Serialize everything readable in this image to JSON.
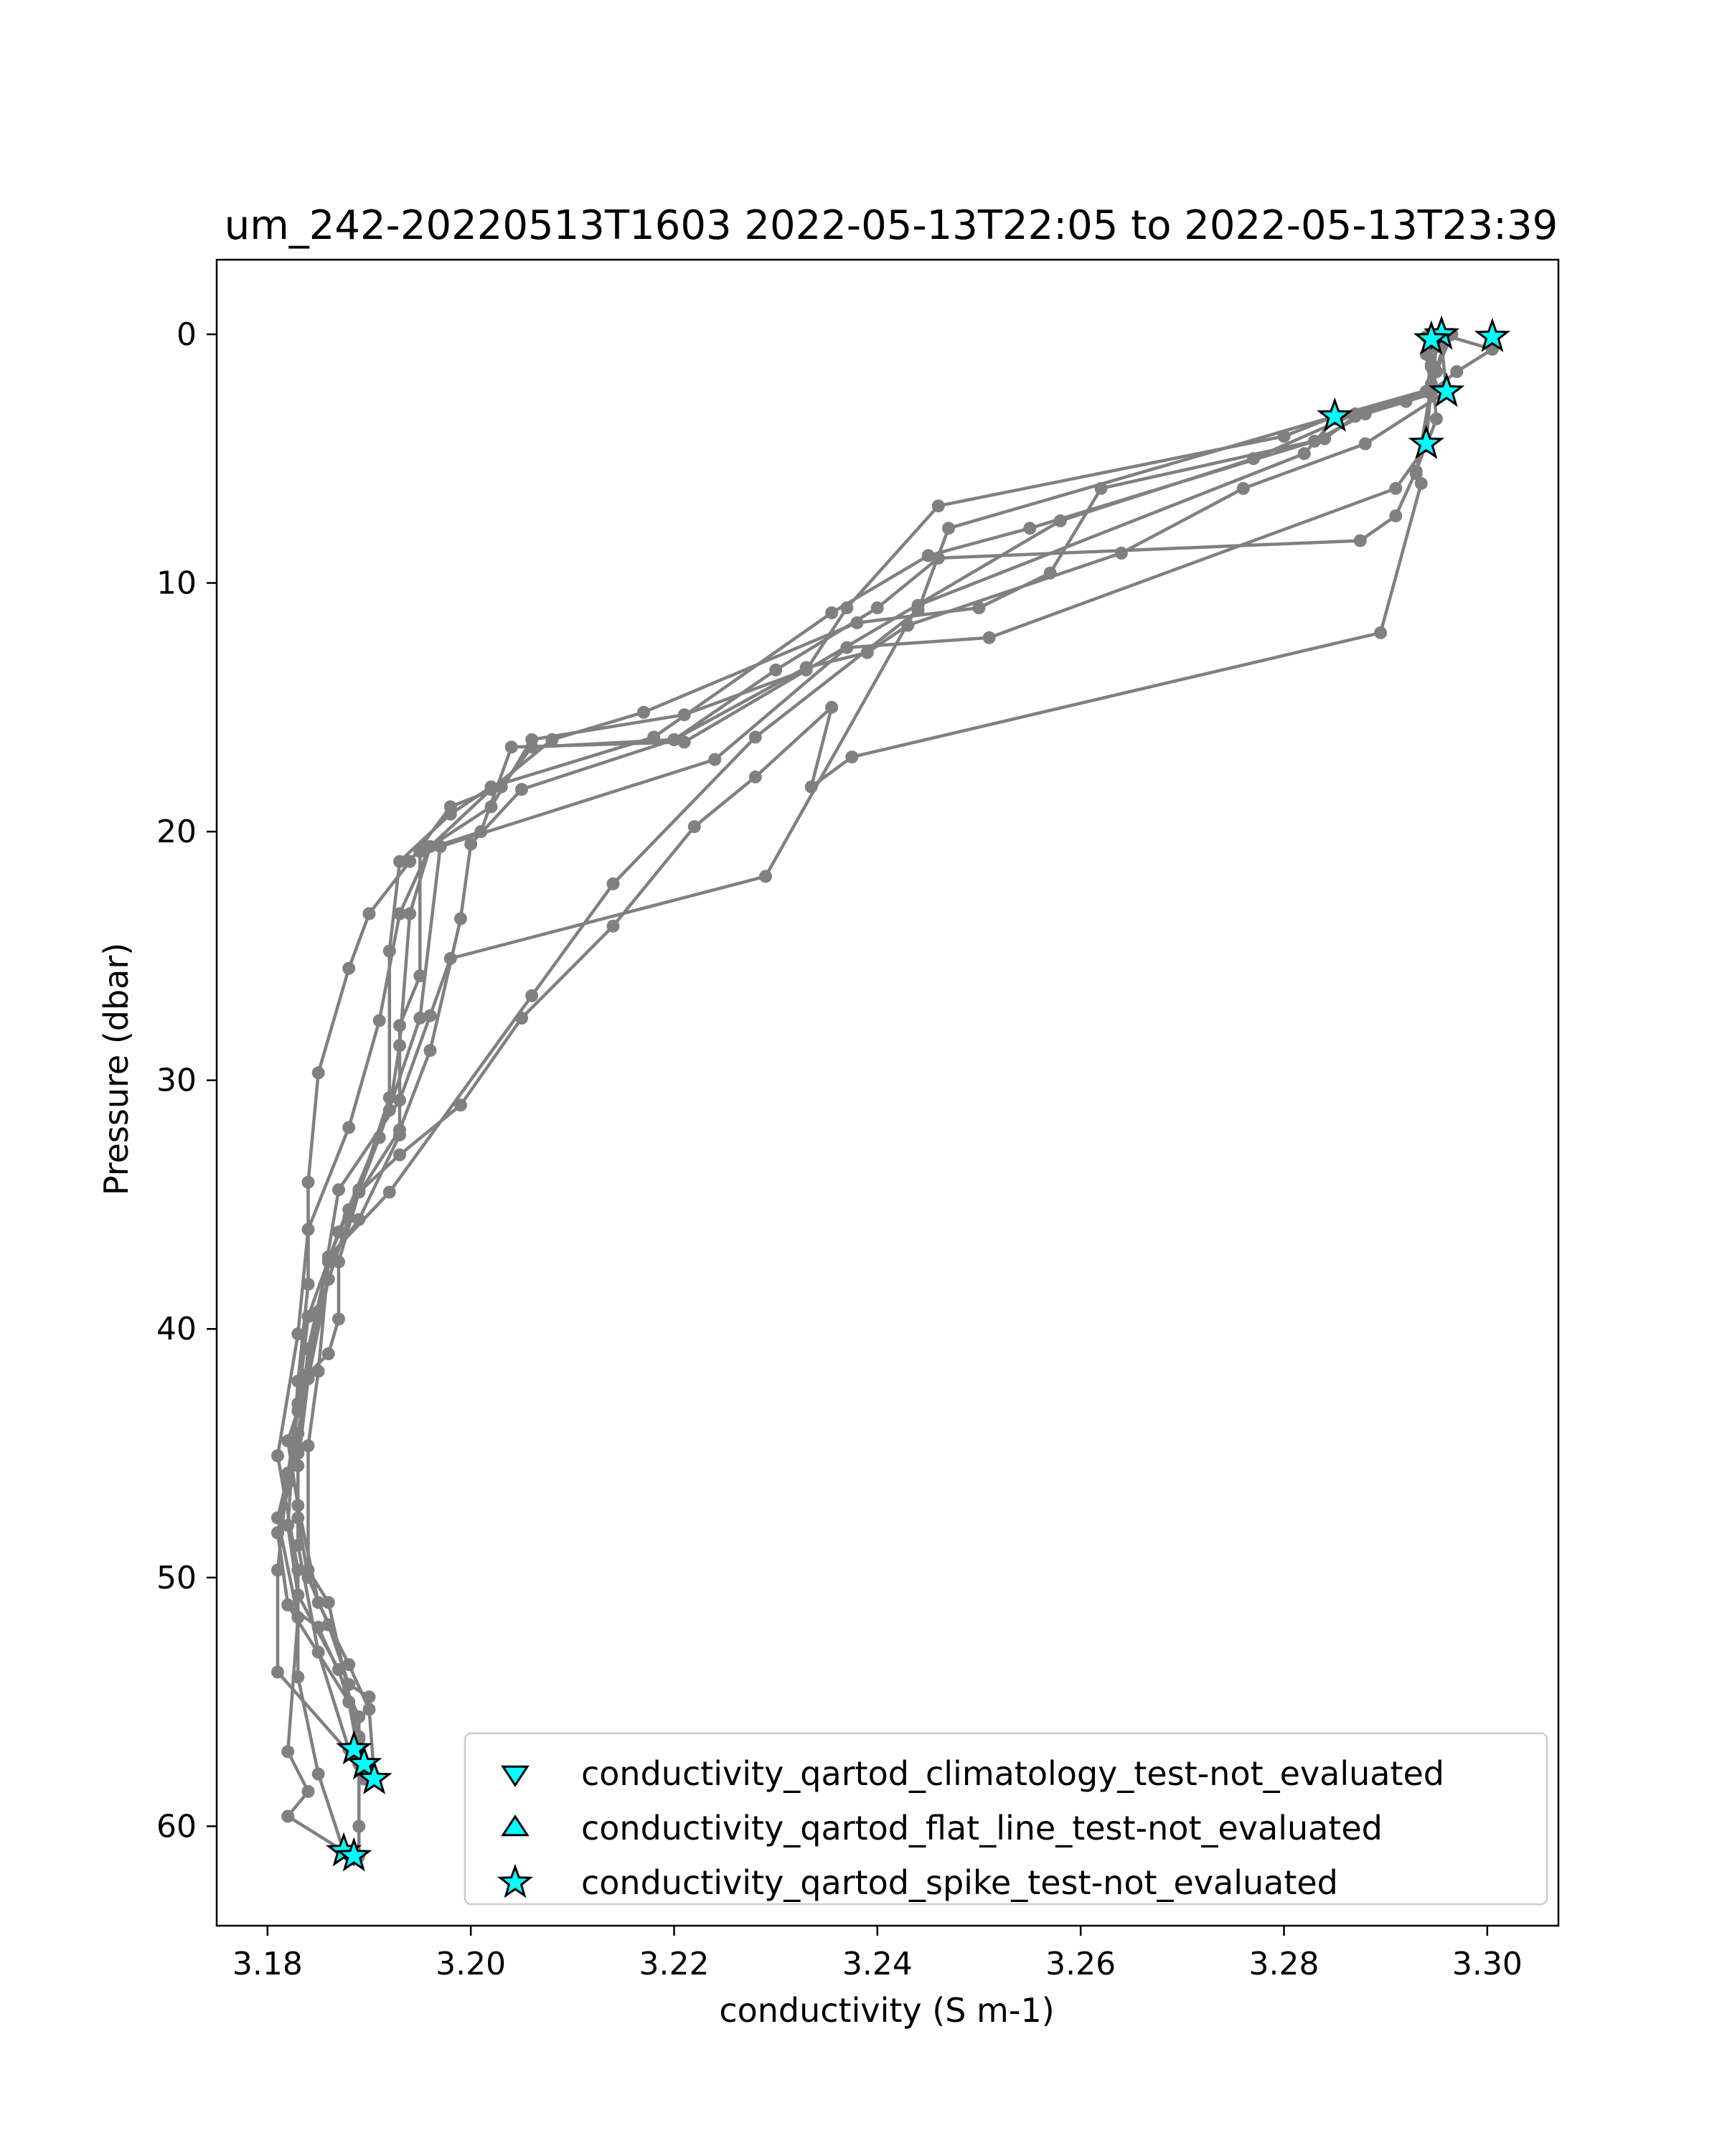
{
  "chart_data": {
    "type": "line",
    "title": "um_242-20220513T1603 2022-05-13T22:05 to 2022-05-13T23:39",
    "xlabel": "conductivity (S m-1)",
    "ylabel": "Pressure (dbar)",
    "xlim": [
      3.175,
      3.307
    ],
    "ylim": [
      64,
      -3
    ],
    "y_inverted": true,
    "xticks": [
      3.18,
      3.2,
      3.22,
      3.24,
      3.26,
      3.28,
      3.3
    ],
    "xtick_labels": [
      "3.18",
      "3.20",
      "3.22",
      "3.24",
      "3.26",
      "3.28",
      "3.30"
    ],
    "yticks": [
      0,
      10,
      20,
      30,
      40,
      50,
      60
    ],
    "ytick_labels": [
      "0",
      "10",
      "20",
      "30",
      "40",
      "50",
      "60"
    ],
    "grid": false,
    "legend_position": "lower-right",
    "colors": {
      "profile_line": "#808080",
      "flag_marker": "#00ffff",
      "marker_edge": "#000000"
    },
    "series": [
      {
        "points": [
          [
            3.2955,
            0.0
          ],
          [
            3.2945,
            1.2
          ],
          [
            3.294,
            2.3
          ],
          [
            3.285,
            3.3
          ],
          [
            3.28,
            4.1
          ],
          [
            3.246,
            6.9
          ],
          [
            3.237,
            11.0
          ],
          [
            3.233,
            13.5
          ],
          [
            3.221,
            15.3
          ],
          [
            3.206,
            16.3
          ],
          [
            3.202,
            19.0
          ],
          [
            3.196,
            20.6
          ],
          [
            3.193,
            23.3
          ],
          [
            3.191,
            27.6
          ],
          [
            3.188,
            31.9
          ],
          [
            3.184,
            36.0
          ],
          [
            3.183,
            40.2
          ],
          [
            3.181,
            45.1
          ],
          [
            3.183,
            49.7
          ],
          [
            3.183,
            54.0
          ],
          [
            3.185,
            57.9
          ],
          [
            3.1875,
            61.0
          ]
        ]
      },
      {
        "points": [
          [
            3.2965,
            0.0
          ],
          [
            3.295,
            1.5
          ],
          [
            3.2945,
            2.4
          ],
          [
            3.288,
            3.2
          ],
          [
            3.283,
            4.3
          ],
          [
            3.255,
            7.8
          ],
          [
            3.245,
            8.9
          ],
          [
            3.2355,
            11.2
          ],
          [
            3.218,
            16.2
          ],
          [
            3.202,
            18.2
          ],
          [
            3.198,
            19.3
          ],
          [
            3.193,
            21.2
          ],
          [
            3.192,
            24.8
          ],
          [
            3.192,
            30.7
          ],
          [
            3.189,
            34.4
          ],
          [
            3.186,
            38.0
          ],
          [
            3.184,
            42.0
          ],
          [
            3.183,
            45.5
          ],
          [
            3.183,
            48.7
          ],
          [
            3.185,
            53.0
          ],
          [
            3.188,
            56.9
          ]
        ]
      },
      {
        "points": [
          [
            3.2955,
            0.0
          ],
          [
            3.3005,
            0.6
          ],
          [
            3.297,
            1.5
          ],
          [
            3.2945,
            2.3
          ],
          [
            3.287,
            3.2
          ],
          [
            3.277,
            5.0
          ],
          [
            3.258,
            7.5
          ],
          [
            3.221,
            16.4
          ],
          [
            3.204,
            16.6
          ],
          [
            3.201,
            20.0
          ],
          [
            3.195,
            20.8
          ],
          [
            3.195,
            25.8
          ],
          [
            3.193,
            27.8
          ],
          [
            3.193,
            32.2
          ],
          [
            3.189,
            35.6
          ],
          [
            3.186,
            37.3
          ],
          [
            3.185,
            41.7
          ],
          [
            3.184,
            44.7
          ],
          [
            3.184,
            49.7
          ],
          [
            3.186,
            51.0
          ],
          [
            3.189,
            56.5
          ],
          [
            3.1895,
            58.1
          ]
        ]
      },
      {
        "points": [
          [
            3.2955,
            0.1
          ],
          [
            3.294,
            0.8
          ],
          [
            3.2945,
            2.2
          ],
          [
            3.292,
            2.7
          ],
          [
            3.287,
            3.3
          ],
          [
            3.284,
            4.2
          ],
          [
            3.262,
            6.2
          ],
          [
            3.257,
            9.6
          ],
          [
            3.25,
            11.0
          ],
          [
            3.238,
            11.6
          ],
          [
            3.217,
            15.2
          ],
          [
            3.208,
            16.3
          ],
          [
            3.202,
            18.3
          ],
          [
            3.196,
            20.6
          ],
          [
            3.194,
            23.3
          ],
          [
            3.193,
            28.6
          ],
          [
            3.192,
            31.2
          ],
          [
            3.187,
            36.1
          ],
          [
            3.184,
            39.5
          ],
          [
            3.183,
            43.0
          ],
          [
            3.182,
            46.2
          ],
          [
            3.181,
            48.2
          ],
          [
            3.182,
            51.1
          ],
          [
            3.188,
            55.0
          ],
          [
            3.189,
            57.2
          ]
        ]
      },
      {
        "points": [
          [
            3.2965,
            0.0
          ],
          [
            3.2955,
            0.4
          ],
          [
            3.296,
            2.3
          ],
          [
            3.288,
            4.4
          ],
          [
            3.276,
            6.2
          ],
          [
            3.264,
            8.8
          ],
          [
            3.243,
            11.7
          ],
          [
            3.239,
            12.8
          ],
          [
            3.233,
            13.4
          ],
          [
            3.22,
            16.3
          ],
          [
            3.206,
            16.6
          ],
          [
            3.203,
            18.2
          ],
          [
            3.198,
            19.0
          ],
          [
            3.194,
            21.2
          ],
          [
            3.19,
            23.3
          ],
          [
            3.188,
            25.5
          ],
          [
            3.185,
            29.7
          ],
          [
            3.184,
            34.1
          ],
          [
            3.184,
            38.2
          ],
          [
            3.183,
            42.1
          ],
          [
            3.182,
            47.9
          ],
          [
            3.183,
            50.7
          ],
          [
            3.187,
            53.7
          ],
          [
            3.189,
            56.4
          ]
        ]
      },
      {
        "points": [
          [
            3.2945,
            0.2
          ],
          [
            3.2945,
            1.3
          ],
          [
            3.295,
            3.4
          ],
          [
            3.294,
            4.5
          ],
          [
            3.291,
            6.2
          ],
          [
            3.251,
            12.2
          ],
          [
            3.237,
            12.6
          ],
          [
            3.224,
            17.1
          ],
          [
            3.197,
            20.6
          ],
          [
            3.195,
            27.5
          ],
          [
            3.191,
            32.3
          ],
          [
            3.188,
            35.5
          ],
          [
            3.185,
            39.3
          ],
          [
            3.184,
            42.0
          ],
          [
            3.182,
            44.5
          ],
          [
            3.183,
            47.1
          ],
          [
            3.185,
            51.0
          ],
          [
            3.188,
            53.5
          ],
          [
            3.19,
            55.3
          ],
          [
            3.1905,
            58.0
          ]
        ]
      },
      {
        "points": [
          [
            3.296,
            0.1
          ],
          [
            3.2945,
            2.0
          ],
          [
            3.294,
            4.4
          ],
          [
            3.293,
            5.5
          ],
          [
            3.291,
            7.3
          ],
          [
            3.2875,
            8.3
          ],
          [
            3.246,
            9.0
          ],
          [
            3.24,
            11.0
          ],
          [
            3.23,
            13.5
          ],
          [
            3.22,
            16.3
          ],
          [
            3.205,
            18.3
          ],
          [
            3.2,
            20.5
          ],
          [
            3.199,
            23.5
          ],
          [
            3.196,
            28.8
          ],
          [
            3.193,
            32.0
          ],
          [
            3.188,
            35.2
          ],
          [
            3.186,
            37.2
          ],
          [
            3.184,
            40.8
          ],
          [
            3.183,
            44.8
          ],
          [
            3.181,
            48.2
          ],
          [
            3.182,
            51.1
          ],
          [
            3.185,
            52.0
          ],
          [
            3.189,
            55.6
          ],
          [
            3.189,
            60.0
          ],
          [
            3.189,
            61.2
          ]
        ]
      },
      {
        "points": [
          [
            3.2945,
            0.0
          ],
          [
            3.295,
            0.5
          ],
          [
            3.2945,
            2.1
          ],
          [
            3.293,
            5.6
          ],
          [
            3.2935,
            6.0
          ],
          [
            3.2895,
            12.0
          ],
          [
            3.2375,
            17.0
          ],
          [
            3.2335,
            18.2
          ],
          [
            3.2355,
            15.0
          ],
          [
            3.228,
            17.8
          ],
          [
            3.222,
            19.8
          ],
          [
            3.214,
            23.8
          ],
          [
            3.205,
            27.5
          ],
          [
            3.199,
            31.0
          ],
          [
            3.193,
            33.0
          ],
          [
            3.189,
            34.5
          ],
          [
            3.187,
            37.3
          ],
          [
            3.187,
            39.6
          ],
          [
            3.186,
            41.0
          ],
          [
            3.184,
            41.8
          ],
          [
            3.183,
            45.0
          ],
          [
            3.183,
            47.6
          ],
          [
            3.184,
            50.0
          ],
          [
            3.186,
            51.9
          ],
          [
            3.188,
            54.3
          ],
          [
            3.19,
            54.8
          ]
        ]
      },
      {
        "points": [
          [
            3.294,
            0.1
          ],
          [
            3.2945,
            1.3
          ],
          [
            3.294,
            2.3
          ],
          [
            3.285,
            3.4
          ],
          [
            3.282,
            4.8
          ],
          [
            3.244,
            10.9
          ],
          [
            3.229,
            21.8
          ],
          [
            3.198,
            25.1
          ],
          [
            3.196,
            27.4
          ],
          [
            3.193,
            30.8
          ],
          [
            3.187,
            34.4
          ],
          [
            3.185,
            39.3
          ],
          [
            3.183,
            44.2
          ],
          [
            3.181,
            47.6
          ],
          [
            3.183,
            51.6
          ],
          [
            3.182,
            57.0
          ],
          [
            3.184,
            58.6
          ],
          [
            3.182,
            59.6
          ],
          [
            3.1875,
            61.0
          ]
        ]
      },
      {
        "points": [
          [
            3.295,
            0.2
          ],
          [
            3.2945,
            2.2
          ],
          [
            3.285,
            3.3
          ],
          [
            3.247,
            7.8
          ],
          [
            3.244,
            11.1
          ],
          [
            3.228,
            16.2
          ],
          [
            3.214,
            22.1
          ],
          [
            3.206,
            26.6
          ],
          [
            3.192,
            34.5
          ],
          [
            3.186,
            37.1
          ],
          [
            3.183,
            43.3
          ],
          [
            3.182,
            45.8
          ],
          [
            3.181,
            49.7
          ],
          [
            3.181,
            53.8
          ],
          [
            3.189,
            57.5
          ]
        ]
      }
    ],
    "flagged_points": [
      {
        "test": "spike",
        "x": 3.2955,
        "y": 0.0
      },
      {
        "test": "spike",
        "x": 3.2945,
        "y": 0.2
      },
      {
        "test": "spike",
        "x": 3.3005,
        "y": 0.1
      },
      {
        "test": "spike",
        "x": 3.296,
        "y": 2.3
      },
      {
        "test": "spike",
        "x": 3.285,
        "y": 3.3
      },
      {
        "test": "spike",
        "x": 3.294,
        "y": 4.4
      },
      {
        "test": "spike",
        "x": 3.1885,
        "y": 56.9
      },
      {
        "test": "spike",
        "x": 3.1895,
        "y": 57.5
      },
      {
        "test": "spike",
        "x": 3.1905,
        "y": 58.1
      },
      {
        "test": "spike",
        "x": 3.1875,
        "y": 61.0
      },
      {
        "test": "spike",
        "x": 3.1885,
        "y": 61.2
      }
    ],
    "legend": [
      {
        "label": "conductivity_qartod_climatology_test-not_evaluated",
        "marker": "triangle-down-icon"
      },
      {
        "label": "conductivity_qartod_flat_line_test-not_evaluated",
        "marker": "triangle-up-icon"
      },
      {
        "label": "conductivity_qartod_spike_test-not_evaluated",
        "marker": "star-icon"
      }
    ]
  }
}
